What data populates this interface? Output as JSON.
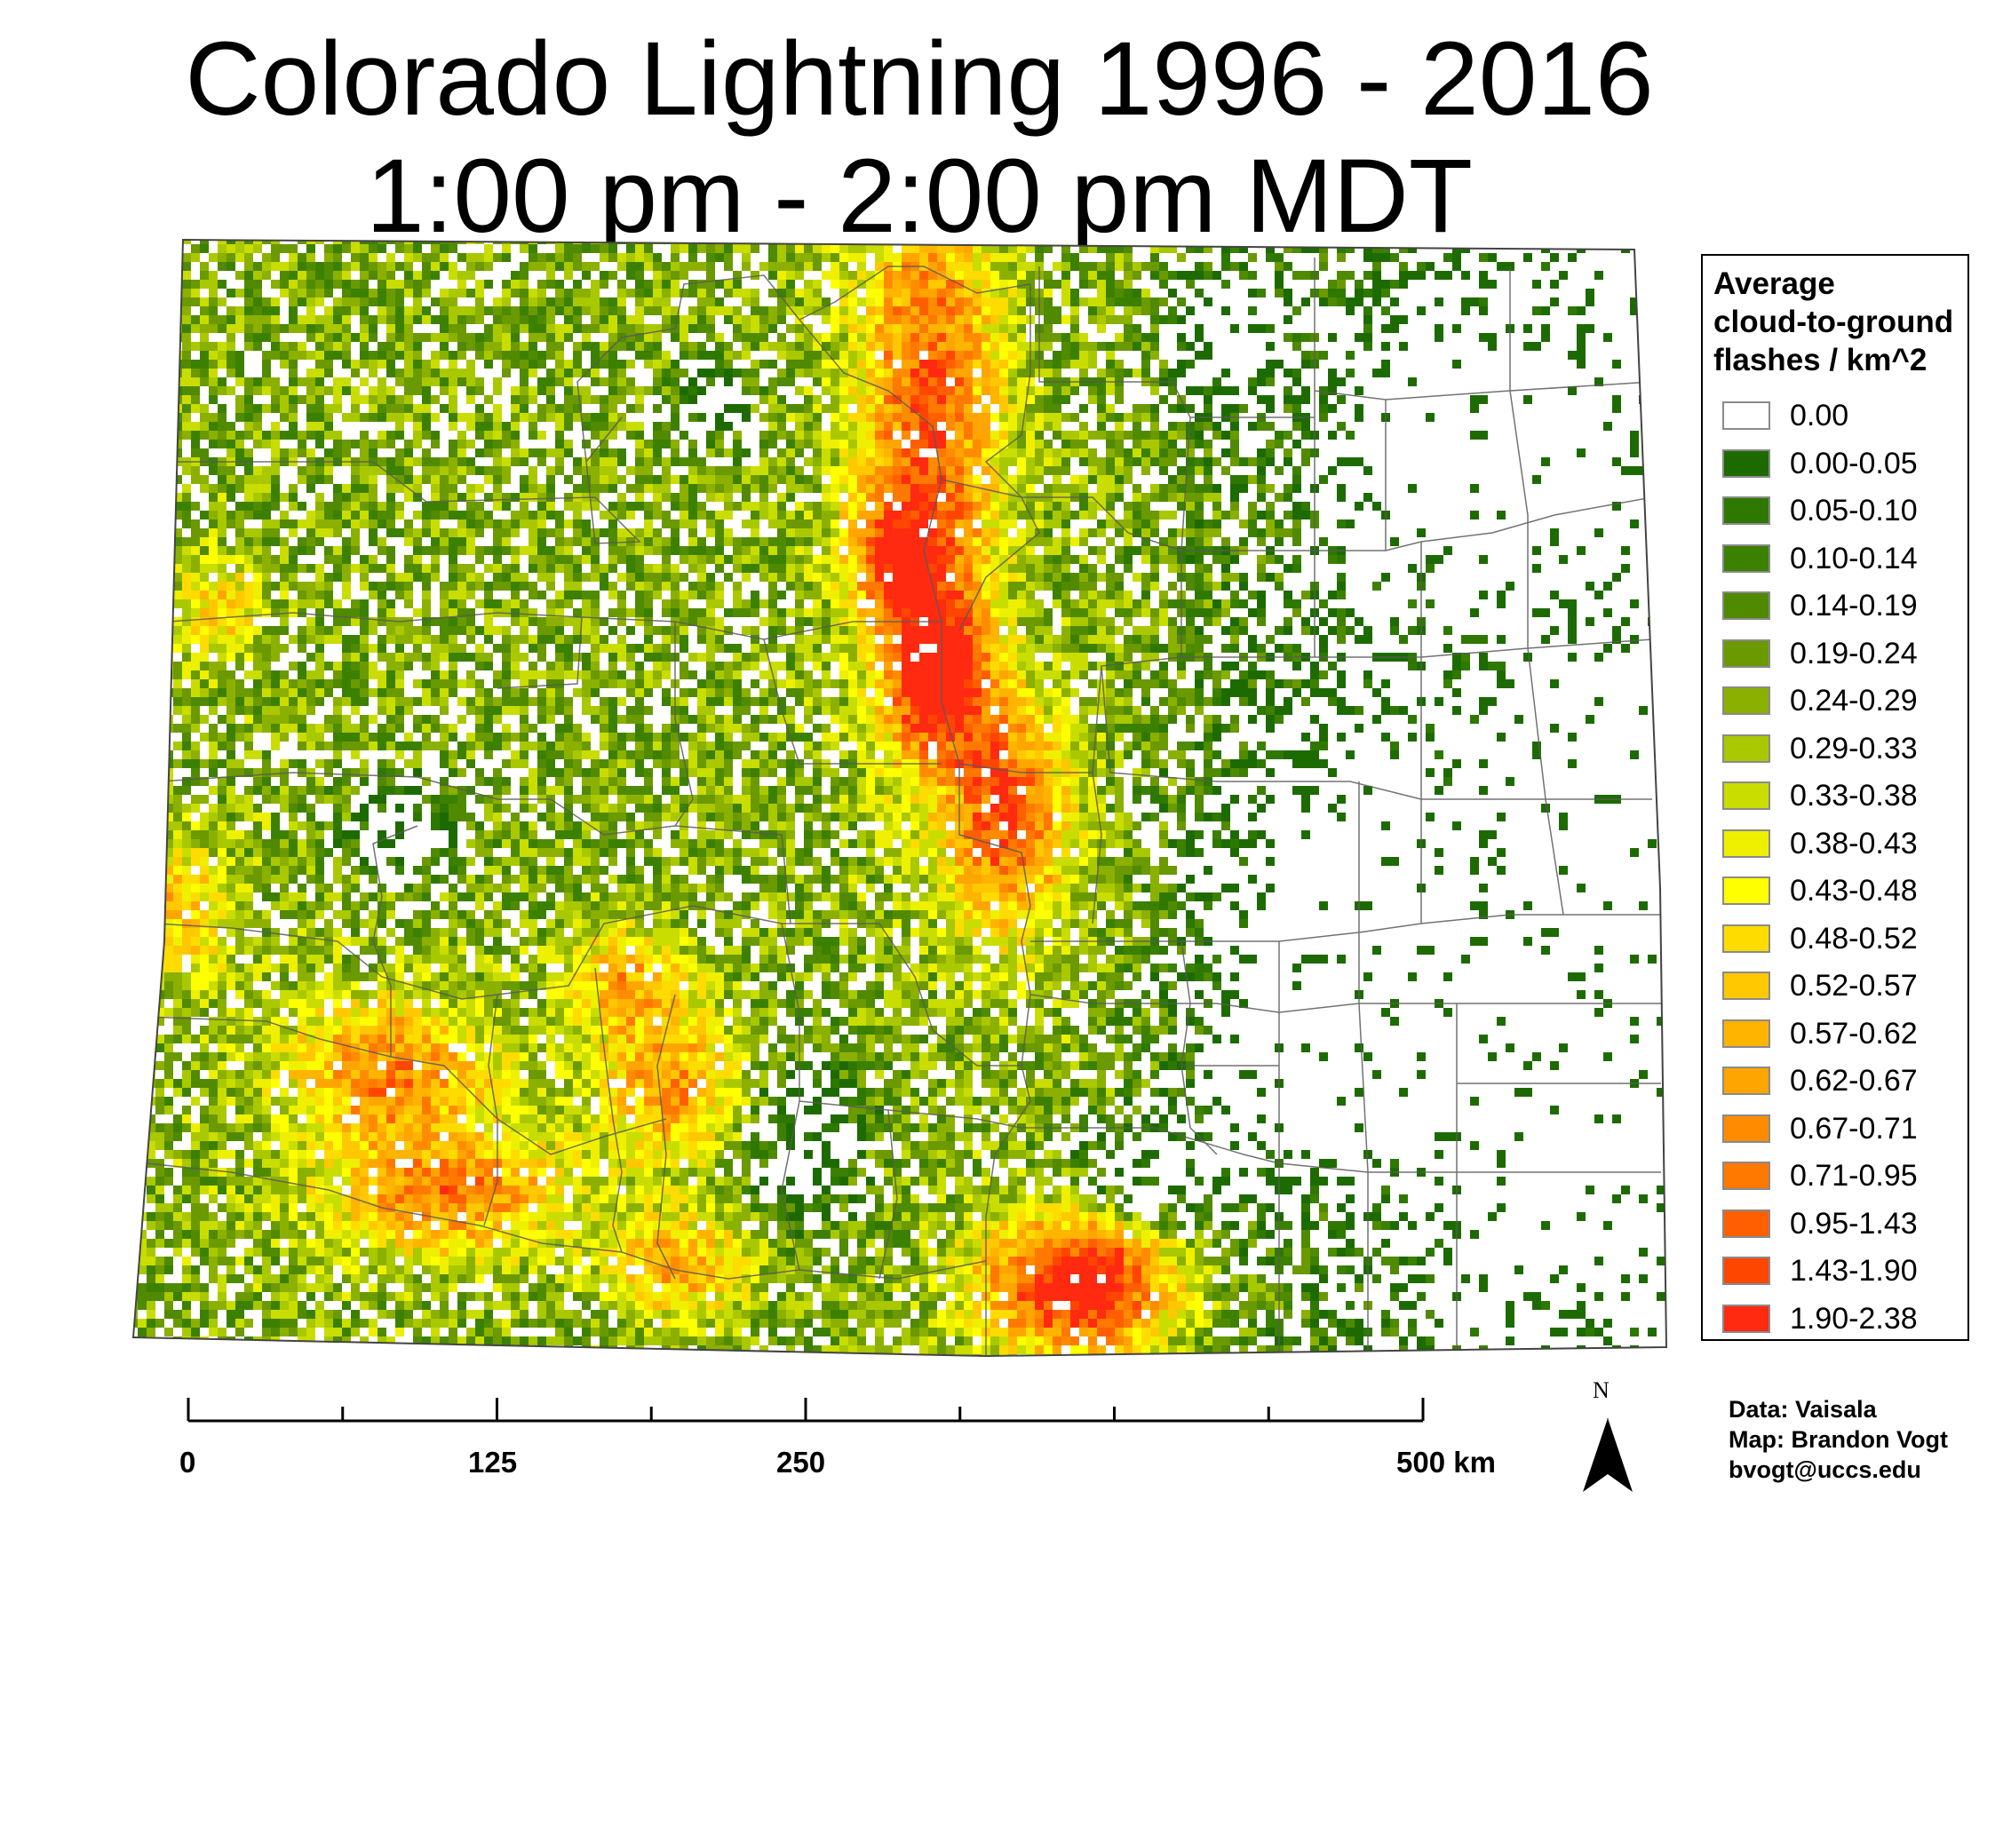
{
  "title": {
    "line1": "Colorado Lightning 1996 - 2016",
    "line2": "1:00 pm - 2:00 pm MDT"
  },
  "map": {
    "region": "Colorado",
    "fill_palette": [
      "#ffffff",
      "#1d6b00",
      "#2f7800",
      "#3c8000",
      "#4f8a00",
      "#6a9900",
      "#8bb000",
      "#a9c800",
      "#c9dd00",
      "#eef000",
      "#ffff00",
      "#ffdc00",
      "#ffc800",
      "#ffb400",
      "#ffa500",
      "#ff8c00",
      "#ff7800",
      "#ff5f00",
      "#ff4600",
      "#ff2a10"
    ]
  },
  "legend": {
    "title_lines": [
      "Average",
      "cloud-to-ground",
      "flashes / km^2"
    ],
    "items": [
      {
        "label": "0.00",
        "color": "#ffffff"
      },
      {
        "label": "0.00-0.05",
        "color": "#1d6b00"
      },
      {
        "label": "0.05-0.10",
        "color": "#2f7800"
      },
      {
        "label": "0.10-0.14",
        "color": "#3c8000"
      },
      {
        "label": "0.14-0.19",
        "color": "#4f8a00"
      },
      {
        "label": "0.19-0.24",
        "color": "#6a9900"
      },
      {
        "label": "0.24-0.29",
        "color": "#8bb000"
      },
      {
        "label": "0.29-0.33",
        "color": "#a9c800"
      },
      {
        "label": "0.33-0.38",
        "color": "#c9dd00"
      },
      {
        "label": "0.38-0.43",
        "color": "#eef000"
      },
      {
        "label": "0.43-0.48",
        "color": "#ffff00"
      },
      {
        "label": "0.48-0.52",
        "color": "#ffdc00"
      },
      {
        "label": "0.52-0.57",
        "color": "#ffc800"
      },
      {
        "label": "0.57-0.62",
        "color": "#ffb400"
      },
      {
        "label": "0.62-0.67",
        "color": "#ffa500"
      },
      {
        "label": "0.67-0.71",
        "color": "#ff8c00"
      },
      {
        "label": "0.71-0.95",
        "color": "#ff7800"
      },
      {
        "label": "0.95-1.43",
        "color": "#ff5f00"
      },
      {
        "label": "1.43-1.90",
        "color": "#ff4600"
      },
      {
        "label": "1.90-2.38",
        "color": "#ff2a10"
      }
    ]
  },
  "scale_bar": {
    "labels": [
      "0",
      "125",
      "250",
      "500 km"
    ],
    "label_values_km": [
      0,
      125,
      250,
      500
    ]
  },
  "north_arrow": {
    "label": "N",
    "icon": "north-arrow-icon"
  },
  "credits": {
    "data": "Data: Vaisala",
    "map": "Map: Brandon Vogt",
    "email": "bvogt@uccs.edu"
  }
}
